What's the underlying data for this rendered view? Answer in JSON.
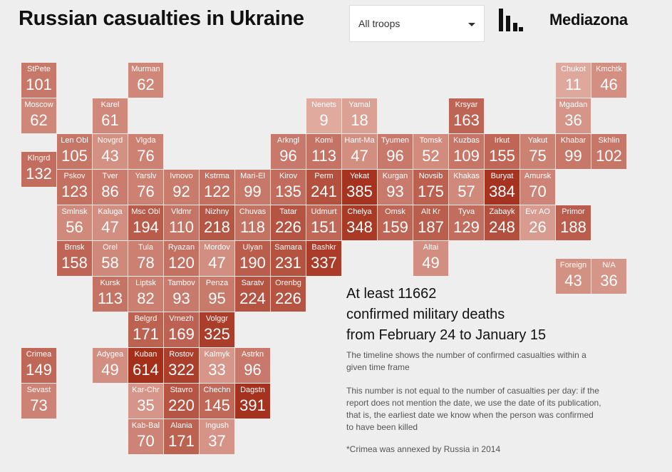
{
  "header": {
    "title": "Russian casualties in Ukraine",
    "brand": "Mediazona"
  },
  "filter": {
    "selected": "All troops"
  },
  "summary": {
    "line1": "At least 11662",
    "line2": "confirmed military deaths",
    "line3": "from February 24 to January 15",
    "note1": "The timeline shows the number of confirmed casualties within a given time frame",
    "note2": "This number is not equal to the number of casualties per day: if the report does not mention the date, we use the date of its publication, that is, the earliest date we know when the person was confirmed to have been killed",
    "note3": "*Crimea was annexed by Russia in 2014"
  },
  "colors": {
    "background": "#eeeeee",
    "scale_low": "#f2d0c7",
    "scale_high": "#a4301c"
  },
  "chart_data": {
    "type": "tile-grid-map",
    "title": "Russian casualties in Ukraine",
    "total": 11662,
    "regions": [
      {
        "name": "StPete",
        "value": 101,
        "col": 0,
        "row": 0
      },
      {
        "name": "Murman",
        "value": 62,
        "col": 3,
        "row": 0
      },
      {
        "name": "Chukot",
        "value": 11,
        "col": 15,
        "row": 0
      },
      {
        "name": "Kmchtk",
        "value": 46,
        "col": 16,
        "row": 0
      },
      {
        "name": "Moscow",
        "value": 62,
        "col": 0,
        "row": 1
      },
      {
        "name": "Karel",
        "value": 61,
        "col": 2,
        "row": 1
      },
      {
        "name": "Nenets",
        "value": 9,
        "col": 8,
        "row": 1
      },
      {
        "name": "Yamal",
        "value": 18,
        "col": 9,
        "row": 1
      },
      {
        "name": "Krsyar",
        "value": 163,
        "col": 12,
        "row": 1
      },
      {
        "name": "Mgadan",
        "value": 36,
        "col": 15,
        "row": 1
      },
      {
        "name": "Len Obl",
        "value": 105,
        "col": 1,
        "row": 2
      },
      {
        "name": "Novgrd",
        "value": 43,
        "col": 2,
        "row": 2
      },
      {
        "name": "Vlgda",
        "value": 76,
        "col": 3,
        "row": 2
      },
      {
        "name": "Arkngl",
        "value": 96,
        "col": 7,
        "row": 2
      },
      {
        "name": "Komi",
        "value": 113,
        "col": 8,
        "row": 2
      },
      {
        "name": "Hant-Ma",
        "value": 47,
        "col": 9,
        "row": 2
      },
      {
        "name": "Tyumen",
        "value": 96,
        "col": 10,
        "row": 2
      },
      {
        "name": "Tomsk",
        "value": 52,
        "col": 11,
        "row": 2
      },
      {
        "name": "Kuzbas",
        "value": 109,
        "col": 12,
        "row": 2
      },
      {
        "name": "Irkut",
        "value": 155,
        "col": 13,
        "row": 2
      },
      {
        "name": "Yakut",
        "value": 75,
        "col": 14,
        "row": 2
      },
      {
        "name": "Khabar",
        "value": 99,
        "col": 15,
        "row": 2
      },
      {
        "name": "Skhlin",
        "value": 102,
        "col": 16,
        "row": 2
      },
      {
        "name": "Klngrd",
        "value": 132,
        "col": 0,
        "row": 2.5
      },
      {
        "name": "Pskov",
        "value": 123,
        "col": 1,
        "row": 3
      },
      {
        "name": "Tver",
        "value": 86,
        "col": 2,
        "row": 3
      },
      {
        "name": "Yarslv",
        "value": 76,
        "col": 3,
        "row": 3
      },
      {
        "name": "Ivnovo",
        "value": 92,
        "col": 4,
        "row": 3
      },
      {
        "name": "Kstrma",
        "value": 122,
        "col": 5,
        "row": 3
      },
      {
        "name": "Mari-El",
        "value": 99,
        "col": 6,
        "row": 3
      },
      {
        "name": "Kirov",
        "value": 135,
        "col": 7,
        "row": 3
      },
      {
        "name": "Perm",
        "value": 241,
        "col": 8,
        "row": 3
      },
      {
        "name": "Yekat",
        "value": 385,
        "col": 9,
        "row": 3
      },
      {
        "name": "Kurgan",
        "value": 93,
        "col": 10,
        "row": 3
      },
      {
        "name": "Novsib",
        "value": 175,
        "col": 11,
        "row": 3
      },
      {
        "name": "Khakas",
        "value": 57,
        "col": 12,
        "row": 3
      },
      {
        "name": "Buryat",
        "value": 384,
        "col": 13,
        "row": 3
      },
      {
        "name": "Amursk",
        "value": 70,
        "col": 14,
        "row": 3
      },
      {
        "name": "Smlnsk",
        "value": 56,
        "col": 1,
        "row": 4
      },
      {
        "name": "Kaluga",
        "value": 47,
        "col": 2,
        "row": 4
      },
      {
        "name": "Msc Obl",
        "value": 194,
        "col": 3,
        "row": 4
      },
      {
        "name": "Vldmr",
        "value": 110,
        "col": 4,
        "row": 4
      },
      {
        "name": "Nizhny",
        "value": 218,
        "col": 5,
        "row": 4
      },
      {
        "name": "Chuvas",
        "value": 118,
        "col": 6,
        "row": 4
      },
      {
        "name": "Tatar",
        "value": 226,
        "col": 7,
        "row": 4
      },
      {
        "name": "Udmurt",
        "value": 151,
        "col": 8,
        "row": 4
      },
      {
        "name": "Chelya",
        "value": 348,
        "col": 9,
        "row": 4
      },
      {
        "name": "Omsk",
        "value": 159,
        "col": 10,
        "row": 4
      },
      {
        "name": "Alt Kr",
        "value": 187,
        "col": 11,
        "row": 4
      },
      {
        "name": "Tyva",
        "value": 129,
        "col": 12,
        "row": 4
      },
      {
        "name": "Zabayk",
        "value": 248,
        "col": 13,
        "row": 4
      },
      {
        "name": "Evr AO",
        "value": 26,
        "col": 14,
        "row": 4
      },
      {
        "name": "Primor",
        "value": 188,
        "col": 15,
        "row": 4
      },
      {
        "name": "Brnsk",
        "value": 158,
        "col": 1,
        "row": 5
      },
      {
        "name": "Orel",
        "value": 58,
        "col": 2,
        "row": 5
      },
      {
        "name": "Tula",
        "value": 78,
        "col": 3,
        "row": 5
      },
      {
        "name": "Ryazan",
        "value": 120,
        "col": 4,
        "row": 5
      },
      {
        "name": "Mordov",
        "value": 47,
        "col": 5,
        "row": 5
      },
      {
        "name": "Ulyan",
        "value": 190,
        "col": 6,
        "row": 5
      },
      {
        "name": "Samara",
        "value": 231,
        "col": 7,
        "row": 5
      },
      {
        "name": "Bashkr",
        "value": 337,
        "col": 8,
        "row": 5
      },
      {
        "name": "Altai",
        "value": 49,
        "col": 11,
        "row": 5
      },
      {
        "name": "Foreign",
        "value": 43,
        "col": 15,
        "row": 5.5
      },
      {
        "name": "N/A",
        "value": 36,
        "col": 16,
        "row": 5.5
      },
      {
        "name": "Kursk",
        "value": 113,
        "col": 2,
        "row": 6
      },
      {
        "name": "Liptsk",
        "value": 82,
        "col": 3,
        "row": 6
      },
      {
        "name": "Tambov",
        "value": 93,
        "col": 4,
        "row": 6
      },
      {
        "name": "Penza",
        "value": 95,
        "col": 5,
        "row": 6
      },
      {
        "name": "Saratv",
        "value": 224,
        "col": 6,
        "row": 6
      },
      {
        "name": "Orenbg",
        "value": 226,
        "col": 7,
        "row": 6
      },
      {
        "name": "Belgrd",
        "value": 171,
        "col": 3,
        "row": 7
      },
      {
        "name": "Vrnezh",
        "value": 169,
        "col": 4,
        "row": 7
      },
      {
        "name": "Volggr",
        "value": 325,
        "col": 5,
        "row": 7
      },
      {
        "name": "Crimea",
        "value": 149,
        "col": 0,
        "row": 8
      },
      {
        "name": "Adygea",
        "value": 49,
        "col": 2,
        "row": 8
      },
      {
        "name": "Kuban",
        "value": 614,
        "col": 3,
        "row": 8
      },
      {
        "name": "Rostov",
        "value": 322,
        "col": 4,
        "row": 8
      },
      {
        "name": "Kalmyk",
        "value": 33,
        "col": 5,
        "row": 8
      },
      {
        "name": "Astrkn",
        "value": 96,
        "col": 6,
        "row": 8
      },
      {
        "name": "Sevast",
        "value": 73,
        "col": 0,
        "row": 9
      },
      {
        "name": "Kar-Chr",
        "value": 35,
        "col": 3,
        "row": 9
      },
      {
        "name": "Stavro",
        "value": 220,
        "col": 4,
        "row": 9
      },
      {
        "name": "Chechn",
        "value": 145,
        "col": 5,
        "row": 9
      },
      {
        "name": "Dagstn",
        "value": 391,
        "col": 6,
        "row": 9
      },
      {
        "name": "Kab-Bal",
        "value": 70,
        "col": 3,
        "row": 10
      },
      {
        "name": "Alania",
        "value": 171,
        "col": 4,
        "row": 10
      },
      {
        "name": "Ingush",
        "value": 37,
        "col": 5,
        "row": 10
      }
    ]
  }
}
